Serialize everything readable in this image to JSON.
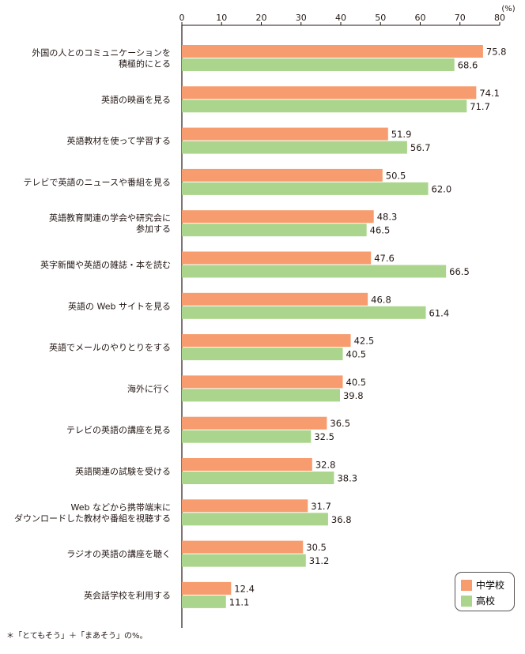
{
  "chart_data": {
    "type": "bar",
    "orientation": "horizontal",
    "unit_label": "(%)",
    "xlim": [
      0,
      80
    ],
    "ticks": [
      0,
      10,
      20,
      30,
      40,
      50,
      60,
      70,
      80
    ],
    "categories": [
      [
        "外国の人とのコミュニケーションを",
        "積極的にとる"
      ],
      [
        "英語の映画を見る"
      ],
      [
        "英語教材を使って学習する"
      ],
      [
        "テレビで英語のニュースや番組を見る"
      ],
      [
        "英語教育関連の学会や研究会に",
        "参加する"
      ],
      [
        "英字新聞や英語の雑誌・本を読む"
      ],
      [
        "英語の Web サイトを見る"
      ],
      [
        "英語でメールのやりとりをする"
      ],
      [
        "海外に行く"
      ],
      [
        "テレビの英語の講座を見る"
      ],
      [
        "英語関連の試験を受ける"
      ],
      [
        "Web などから携帯端末に",
        "ダウンロードした教材や番組を視聴する"
      ],
      [
        "ラジオの英語の講座を聴く"
      ],
      [
        "英会話学校を利用する"
      ]
    ],
    "series": [
      {
        "name": "中学校",
        "color": "#F79C6E",
        "values": [
          75.8,
          74.1,
          51.9,
          50.5,
          48.3,
          47.6,
          46.8,
          42.5,
          40.5,
          36.5,
          32.8,
          31.7,
          30.5,
          12.4
        ]
      },
      {
        "name": "高校",
        "color": "#ABD58C",
        "values": [
          68.6,
          71.7,
          56.7,
          62.0,
          46.5,
          66.5,
          61.4,
          40.5,
          39.8,
          32.5,
          38.3,
          36.8,
          31.2,
          11.1
        ]
      }
    ],
    "legend": "bottom-right",
    "grid": false
  },
  "footnote": "＊「とてもそう」＋「まあそう」の%。"
}
